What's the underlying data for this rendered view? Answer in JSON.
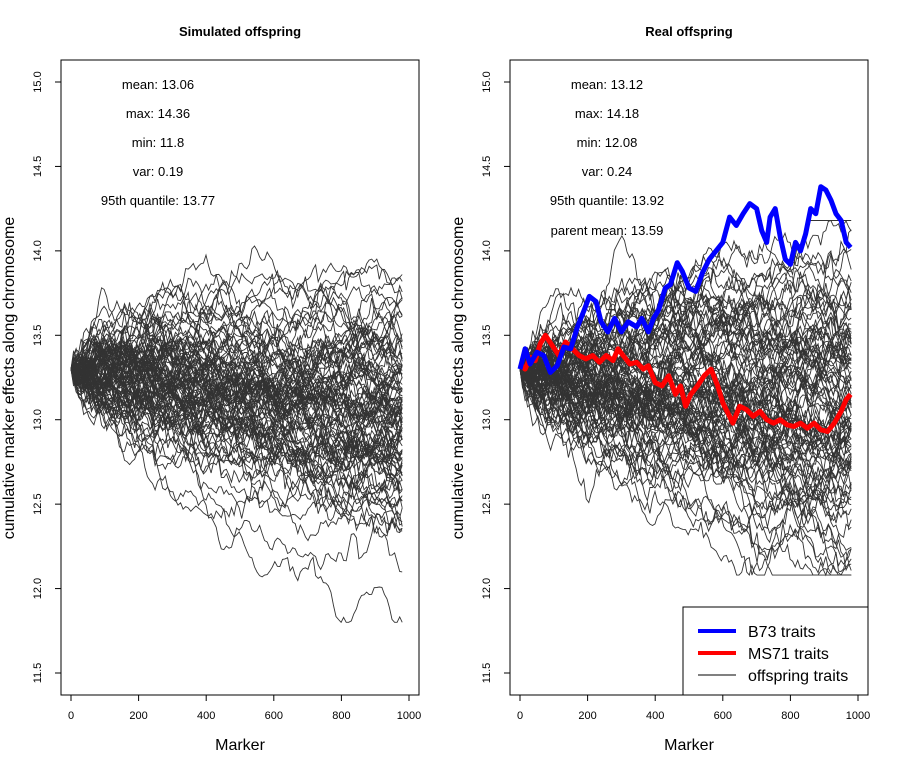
{
  "chart_data": [
    {
      "type": "line",
      "title": "Simulated offspring",
      "xlabel": "Marker",
      "ylabel": "cumulative marker effects along chromosome",
      "xlim": [
        0,
        1000
      ],
      "ylim": [
        11.5,
        15.0
      ],
      "x_ticks": [
        "0",
        "200",
        "400",
        "600",
        "800",
        "1000"
      ],
      "y_ticks": [
        "11.5",
        "12.0",
        "12.5",
        "13.0",
        "13.5",
        "14.0",
        "14.5",
        "15.0"
      ],
      "n_markers": 980,
      "start_value": 13.3,
      "stats": [
        "mean: 13.06",
        "max: 14.36",
        "min: 11.8",
        "var: 0.19",
        "95th quantile: 13.77"
      ],
      "series": [
        {
          "color": "#333333",
          "count": 100,
          "final_mean": 13.06,
          "final_max": 14.36,
          "final_min": 11.8,
          "final_var": 0.19
        }
      ]
    },
    {
      "type": "line",
      "title": "Real offspring",
      "xlabel": "Marker",
      "ylabel": "cumulative marker effects along chromosome",
      "xlim": [
        0,
        1000
      ],
      "ylim": [
        11.5,
        15.0
      ],
      "x_ticks": [
        "0",
        "200",
        "400",
        "600",
        "800",
        "1000"
      ],
      "y_ticks": [
        "11.5",
        "12.0",
        "12.5",
        "13.0",
        "13.5",
        "14.0",
        "14.5",
        "15.0"
      ],
      "n_markers": 980,
      "start_value": 13.3,
      "stats": [
        "mean: 13.12",
        "max: 14.18",
        "min: 12.08",
        "var: 0.24",
        "95th quantile: 13.92",
        "parent mean: 13.59"
      ],
      "series": [
        {
          "name": "offspring traits",
          "color": "#333333",
          "count": 100,
          "final_mean": 13.12,
          "final_max": 14.18,
          "final_min": 12.08,
          "final_var": 0.24
        },
        {
          "name": "B73 traits",
          "color": "#0000ff",
          "points": [
            [
              0,
              13.3
            ],
            [
              15,
              13.42
            ],
            [
              30,
              13.33
            ],
            [
              50,
              13.4
            ],
            [
              70,
              13.38
            ],
            [
              90,
              13.28
            ],
            [
              110,
              13.32
            ],
            [
              130,
              13.43
            ],
            [
              150,
              13.42
            ],
            [
              170,
              13.55
            ],
            [
              190,
              13.65
            ],
            [
              205,
              13.73
            ],
            [
              225,
              13.7
            ],
            [
              240,
              13.58
            ],
            [
              260,
              13.52
            ],
            [
              280,
              13.6
            ],
            [
              300,
              13.52
            ],
            [
              320,
              13.58
            ],
            [
              345,
              13.55
            ],
            [
              360,
              13.6
            ],
            [
              380,
              13.52
            ],
            [
              395,
              13.6
            ],
            [
              410,
              13.65
            ],
            [
              430,
              13.78
            ],
            [
              445,
              13.8
            ],
            [
              465,
              13.93
            ],
            [
              480,
              13.88
            ],
            [
              500,
              13.78
            ],
            [
              520,
              13.76
            ],
            [
              540,
              13.87
            ],
            [
              560,
              13.95
            ],
            [
              580,
              14.0
            ],
            [
              600,
              14.05
            ],
            [
              620,
              14.2
            ],
            [
              640,
              14.15
            ],
            [
              660,
              14.22
            ],
            [
              680,
              14.28
            ],
            [
              700,
              14.25
            ],
            [
              715,
              14.12
            ],
            [
              730,
              14.05
            ],
            [
              740,
              14.2
            ],
            [
              755,
              14.25
            ],
            [
              770,
              14.08
            ],
            [
              785,
              13.95
            ],
            [
              800,
              13.92
            ],
            [
              815,
              14.05
            ],
            [
              830,
              14.0
            ],
            [
              845,
              14.1
            ],
            [
              860,
              14.25
            ],
            [
              875,
              14.22
            ],
            [
              890,
              14.38
            ],
            [
              905,
              14.36
            ],
            [
              920,
              14.3
            ],
            [
              935,
              14.22
            ],
            [
              950,
              14.18
            ],
            [
              965,
              14.05
            ],
            [
              978,
              14.02
            ]
          ]
        },
        {
          "name": "MS71 traits",
          "color": "#ff0000",
          "points": [
            [
              0,
              13.33
            ],
            [
              15,
              13.3
            ],
            [
              30,
              13.37
            ],
            [
              45,
              13.35
            ],
            [
              60,
              13.45
            ],
            [
              75,
              13.5
            ],
            [
              95,
              13.44
            ],
            [
              115,
              13.38
            ],
            [
              135,
              13.46
            ],
            [
              155,
              13.42
            ],
            [
              175,
              13.38
            ],
            [
              195,
              13.36
            ],
            [
              215,
              13.38
            ],
            [
              235,
              13.34
            ],
            [
              255,
              13.38
            ],
            [
              275,
              13.35
            ],
            [
              290,
              13.42
            ],
            [
              305,
              13.38
            ],
            [
              325,
              13.33
            ],
            [
              345,
              13.34
            ],
            [
              365,
              13.3
            ],
            [
              380,
              13.32
            ],
            [
              400,
              13.22
            ],
            [
              420,
              13.2
            ],
            [
              440,
              13.26
            ],
            [
              460,
              13.15
            ],
            [
              475,
              13.2
            ],
            [
              490,
              13.08
            ],
            [
              505,
              13.15
            ],
            [
              525,
              13.2
            ],
            [
              545,
              13.26
            ],
            [
              565,
              13.3
            ],
            [
              585,
              13.2
            ],
            [
              600,
              13.1
            ],
            [
              615,
              13.04
            ],
            [
              630,
              12.98
            ],
            [
              650,
              13.08
            ],
            [
              670,
              13.06
            ],
            [
              690,
              13.02
            ],
            [
              710,
              13.05
            ],
            [
              730,
              13.0
            ],
            [
              750,
              12.98
            ],
            [
              770,
              13.0
            ],
            [
              790,
              12.97
            ],
            [
              810,
              12.96
            ],
            [
              830,
              12.98
            ],
            [
              850,
              12.95
            ],
            [
              870,
              12.98
            ],
            [
              890,
              12.94
            ],
            [
              910,
              12.93
            ],
            [
              930,
              12.98
            ],
            [
              950,
              13.05
            ],
            [
              965,
              13.12
            ],
            [
              978,
              13.15
            ]
          ]
        }
      ],
      "legend": {
        "position": "bottom-right",
        "entries": [
          "B73 traits",
          "MS71 traits",
          "offspring traits"
        ]
      }
    }
  ]
}
